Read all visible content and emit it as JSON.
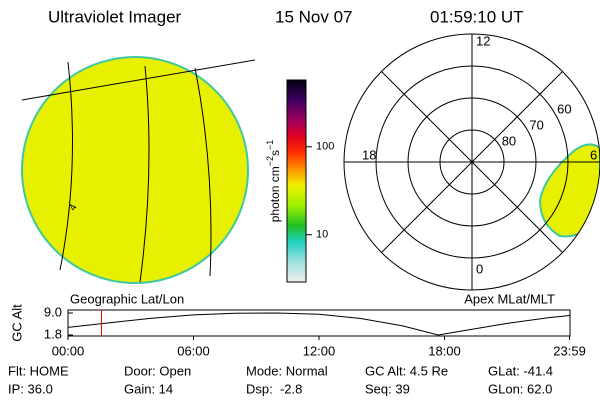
{
  "header": {
    "title": "Ultraviolet Imager",
    "date": "15 Nov 07",
    "time": "01:59:10 UT"
  },
  "geo_map": {
    "subtitle": "Geographic Lat/Lon",
    "label": "4"
  },
  "colorbar": {
    "unit": [
      "photon cm",
      "−2",
      "s",
      "−1"
    ],
    "log": true,
    "lim": [
      2.9,
      575
    ],
    "ticks": [
      10,
      100
    ]
  },
  "polar_map": {
    "subtitle": "Apex MLat/MLT",
    "mlt_labels": [
      12,
      6,
      0,
      18
    ],
    "lat_rings": [
      80,
      70,
      60
    ]
  },
  "timeline": {
    "ylabel": "GC Alt",
    "ylim": [
      1.8,
      9
    ],
    "yticks": [
      {
        "value": 9,
        "label": "9.0"
      },
      1.8
    ],
    "xlim": [
      0,
      24
    ],
    "xticks": [
      {
        "value": 0,
        "label": "00:00"
      },
      {
        "value": 6,
        "label": "06:00"
      },
      {
        "value": 12,
        "label": "12:00"
      },
      {
        "value": 18,
        "label": "18:00"
      },
      {
        "value": 23.98,
        "label": "23:59"
      }
    ],
    "x": [
      0,
      2,
      4,
      6,
      8,
      10,
      12,
      14,
      16,
      17.7,
      19,
      21,
      23,
      24
    ],
    "values": [
      4.3,
      5.8,
      7.3,
      8.4,
      8.9,
      9.0,
      8.6,
      7.2,
      4.8,
      1.8,
      3.3,
      5.6,
      7.5,
      8.2
    ],
    "marker": 1.6,
    "marker_color": "#e00000"
  },
  "status": {
    "rows": [
      [
        "Flt: HOME",
        "Door: Open",
        "Mode: Normal",
        "GC Alt: 4.5 Re",
        "GLat: -41.4"
      ],
      [
        "IP: 36.0",
        "Gain: 14",
        "Dsp:  -2.8",
        "Seq: 39",
        "GLon: 62.0"
      ]
    ]
  }
}
